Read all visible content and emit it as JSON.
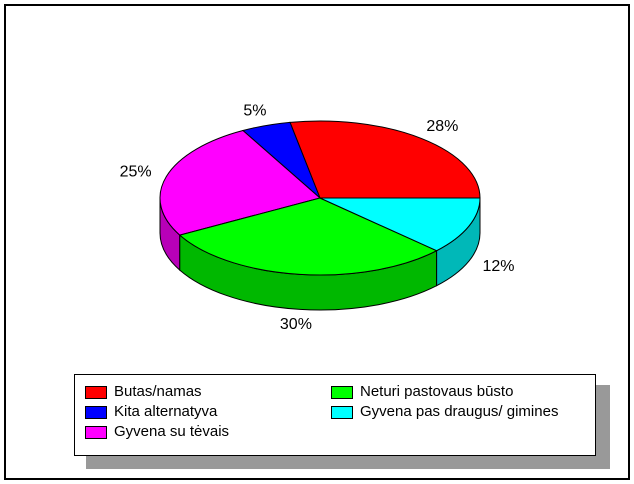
{
  "chart_data": {
    "type": "pie3d",
    "categories": [
      "Butas/namas",
      "Kita alternatyva",
      "Gyvena su tėvais",
      "Neturi pastovaus būsto",
      "Gyvena pas draugus/ gimines"
    ],
    "values": [
      28,
      5,
      25,
      30,
      12
    ],
    "value_labels": [
      "28%",
      "5%",
      "25%",
      "30%",
      "12%"
    ],
    "colors": [
      "#ff0000",
      "#0000ff",
      "#ff00ff",
      "#00ff00",
      "#00ffff"
    ],
    "legend": "bottom"
  }
}
